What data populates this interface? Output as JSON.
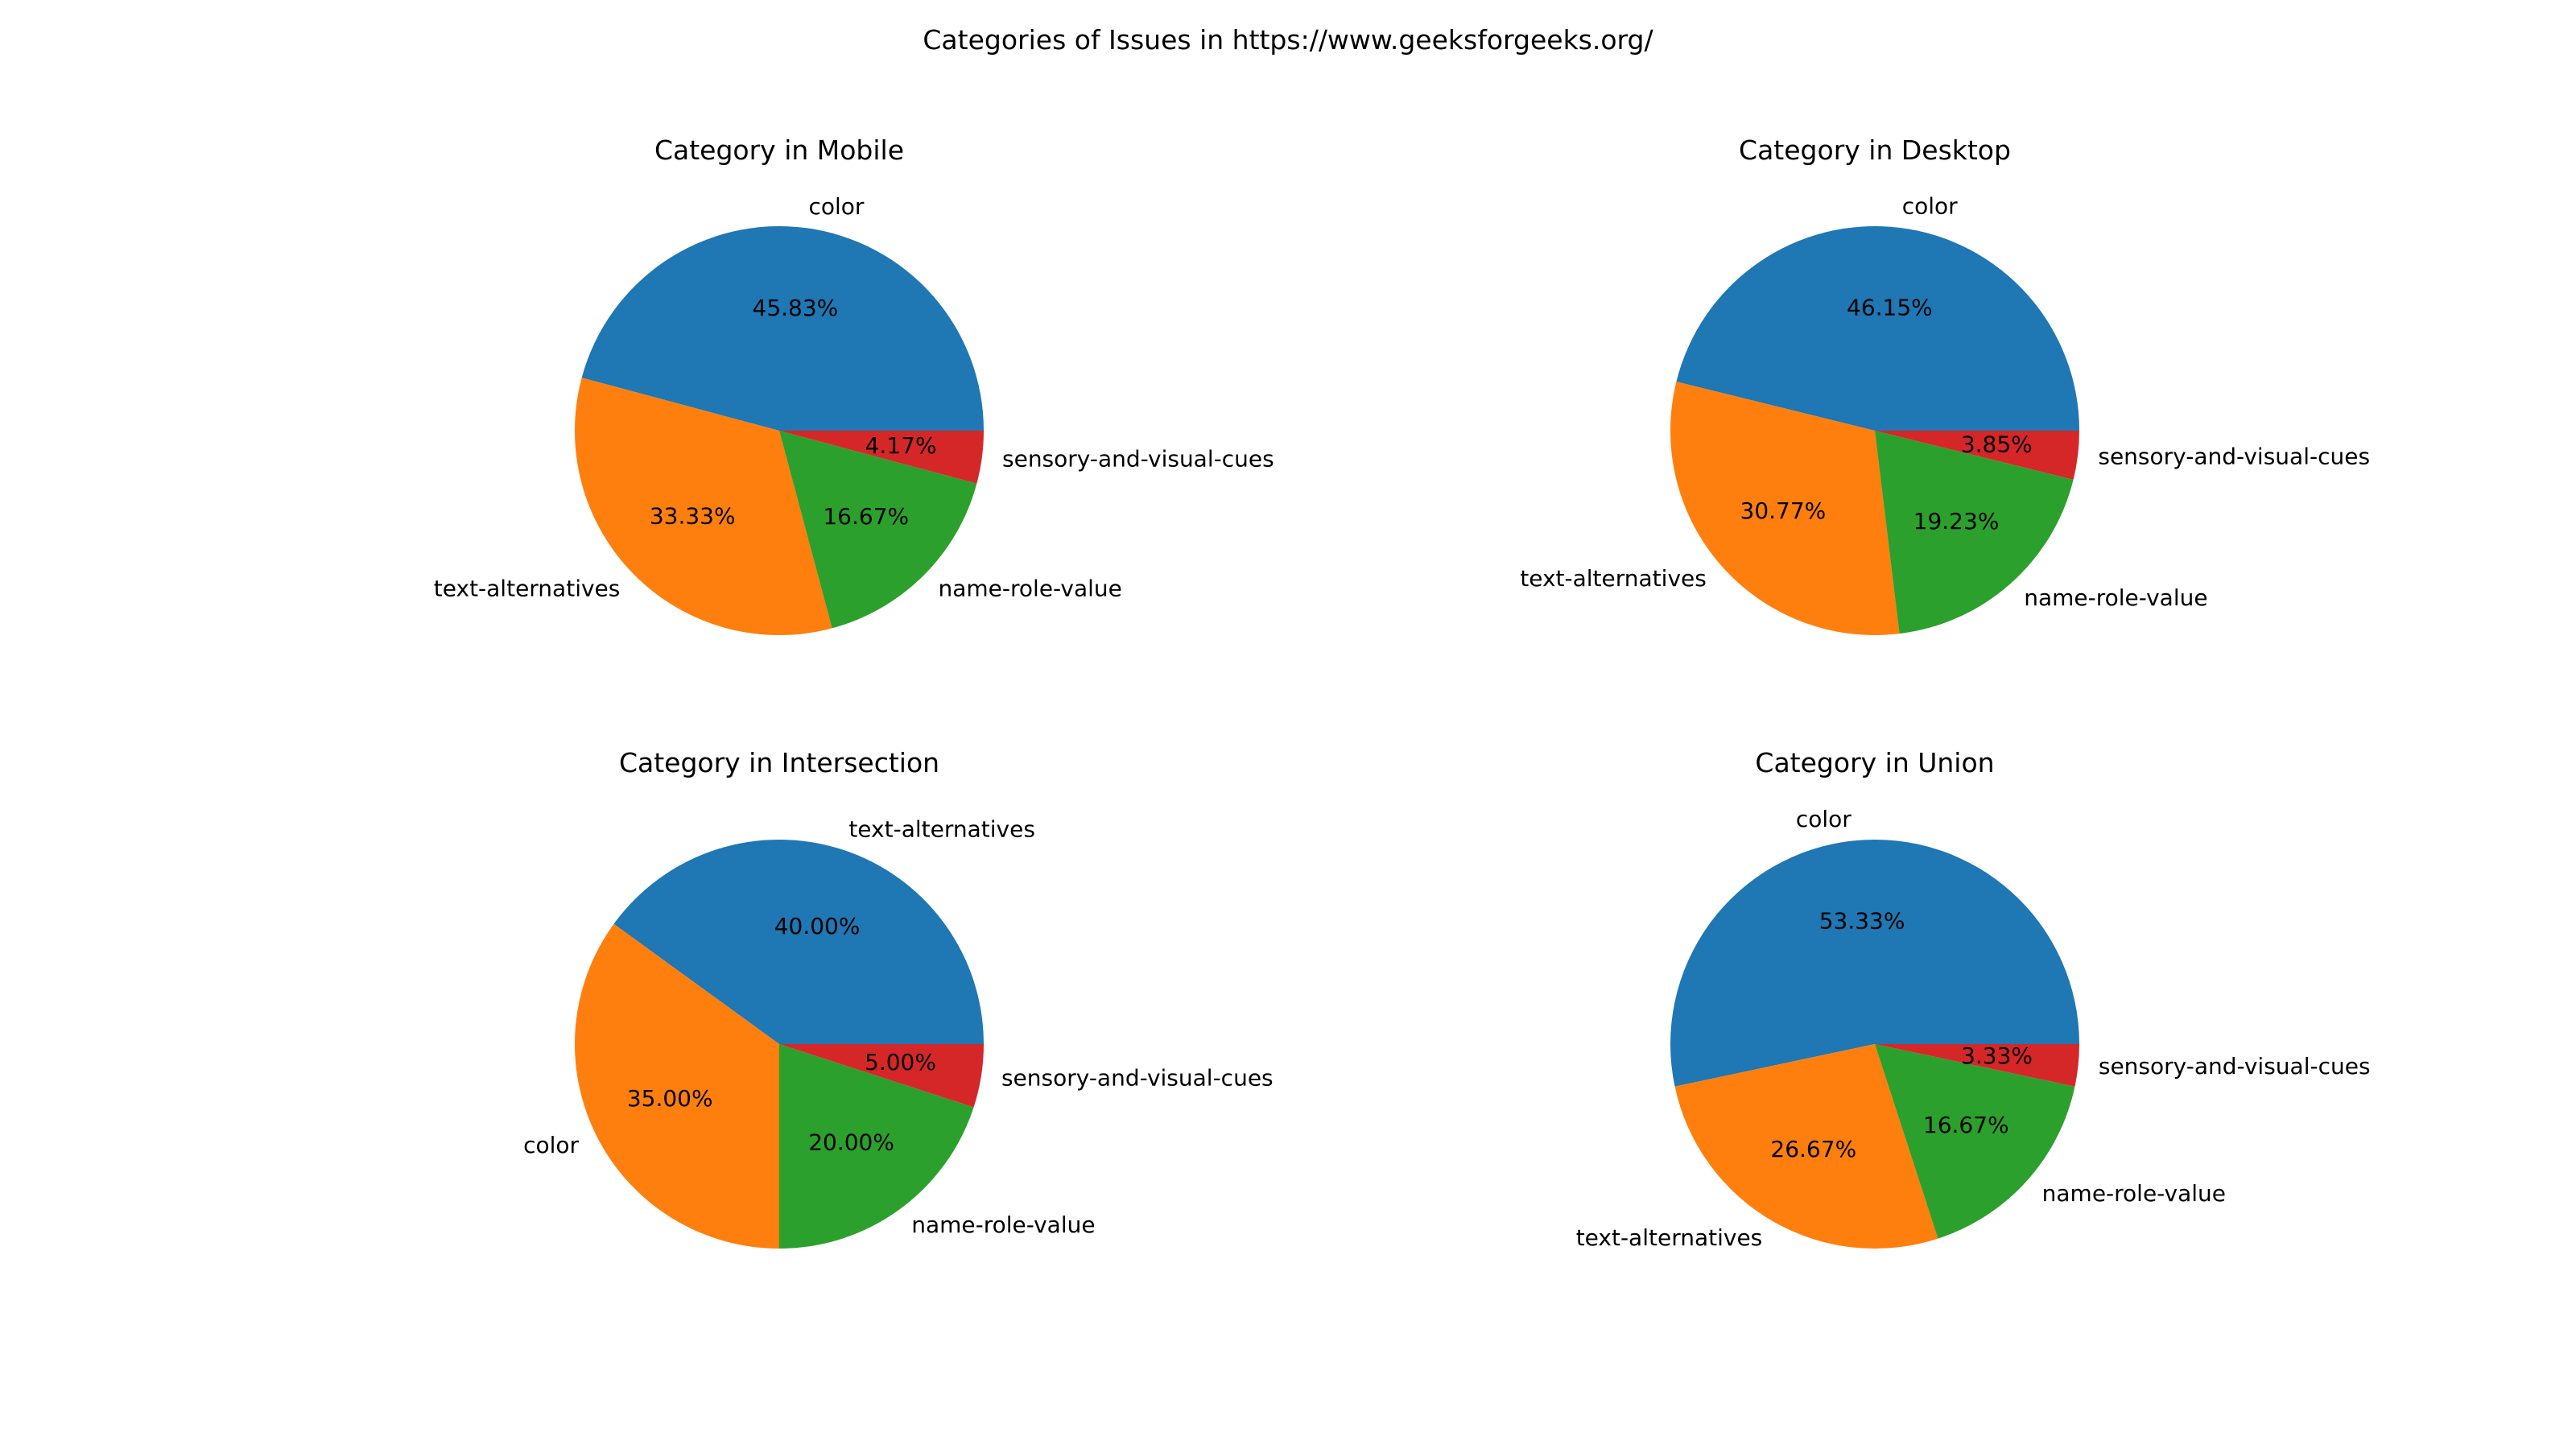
{
  "figure": {
    "title": "Categories of Issues in https://www.geeksforgeeks.org/"
  },
  "colors": {
    "blue": "#1f77b4",
    "orange": "#ff7f0e",
    "green": "#2ca02c",
    "red": "#d62728"
  },
  "chart_data": [
    {
      "type": "pie",
      "title": "Category in Mobile",
      "start_angle_deg": 0,
      "direction": "counterclockwise",
      "slices": [
        {
          "label": "color",
          "value": 45.83,
          "pct_label": "45.83%",
          "color": "#1f77b4"
        },
        {
          "label": "text-alternatives",
          "value": 33.33,
          "pct_label": "33.33%",
          "color": "#ff7f0e"
        },
        {
          "label": "name-role-value",
          "value": 16.67,
          "pct_label": "16.67%",
          "color": "#2ca02c"
        },
        {
          "label": "sensory-and-visual-cues",
          "value": 4.17,
          "pct_label": "4.17%",
          "color": "#d62728"
        }
      ]
    },
    {
      "type": "pie",
      "title": "Category in Desktop",
      "start_angle_deg": 0,
      "direction": "counterclockwise",
      "slices": [
        {
          "label": "color",
          "value": 46.15,
          "pct_label": "46.15%",
          "color": "#1f77b4"
        },
        {
          "label": "text-alternatives",
          "value": 30.77,
          "pct_label": "30.77%",
          "color": "#ff7f0e"
        },
        {
          "label": "name-role-value",
          "value": 19.23,
          "pct_label": "19.23%",
          "color": "#2ca02c"
        },
        {
          "label": "sensory-and-visual-cues",
          "value": 3.85,
          "pct_label": "3.85%",
          "color": "#d62728"
        }
      ]
    },
    {
      "type": "pie",
      "title": "Category in Intersection",
      "start_angle_deg": 0,
      "direction": "counterclockwise",
      "slices": [
        {
          "label": "text-alternatives",
          "value": 40.0,
          "pct_label": "40.00%",
          "color": "#1f77b4"
        },
        {
          "label": "color",
          "value": 35.0,
          "pct_label": "35.00%",
          "color": "#ff7f0e"
        },
        {
          "label": "name-role-value",
          "value": 20.0,
          "pct_label": "20.00%",
          "color": "#2ca02c"
        },
        {
          "label": "sensory-and-visual-cues",
          "value": 5.0,
          "pct_label": "5.00%",
          "color": "#d62728"
        }
      ]
    },
    {
      "type": "pie",
      "title": "Category in Union",
      "start_angle_deg": 0,
      "direction": "counterclockwise",
      "slices": [
        {
          "label": "color",
          "value": 53.33,
          "pct_label": "53.33%",
          "color": "#1f77b4"
        },
        {
          "label": "text-alternatives",
          "value": 26.67,
          "pct_label": "26.67%",
          "color": "#ff7f0e"
        },
        {
          "label": "name-role-value",
          "value": 16.67,
          "pct_label": "16.67%",
          "color": "#2ca02c"
        },
        {
          "label": "sensory-and-visual-cues",
          "value": 3.33,
          "pct_label": "3.33%",
          "color": "#d62728"
        }
      ]
    }
  ]
}
